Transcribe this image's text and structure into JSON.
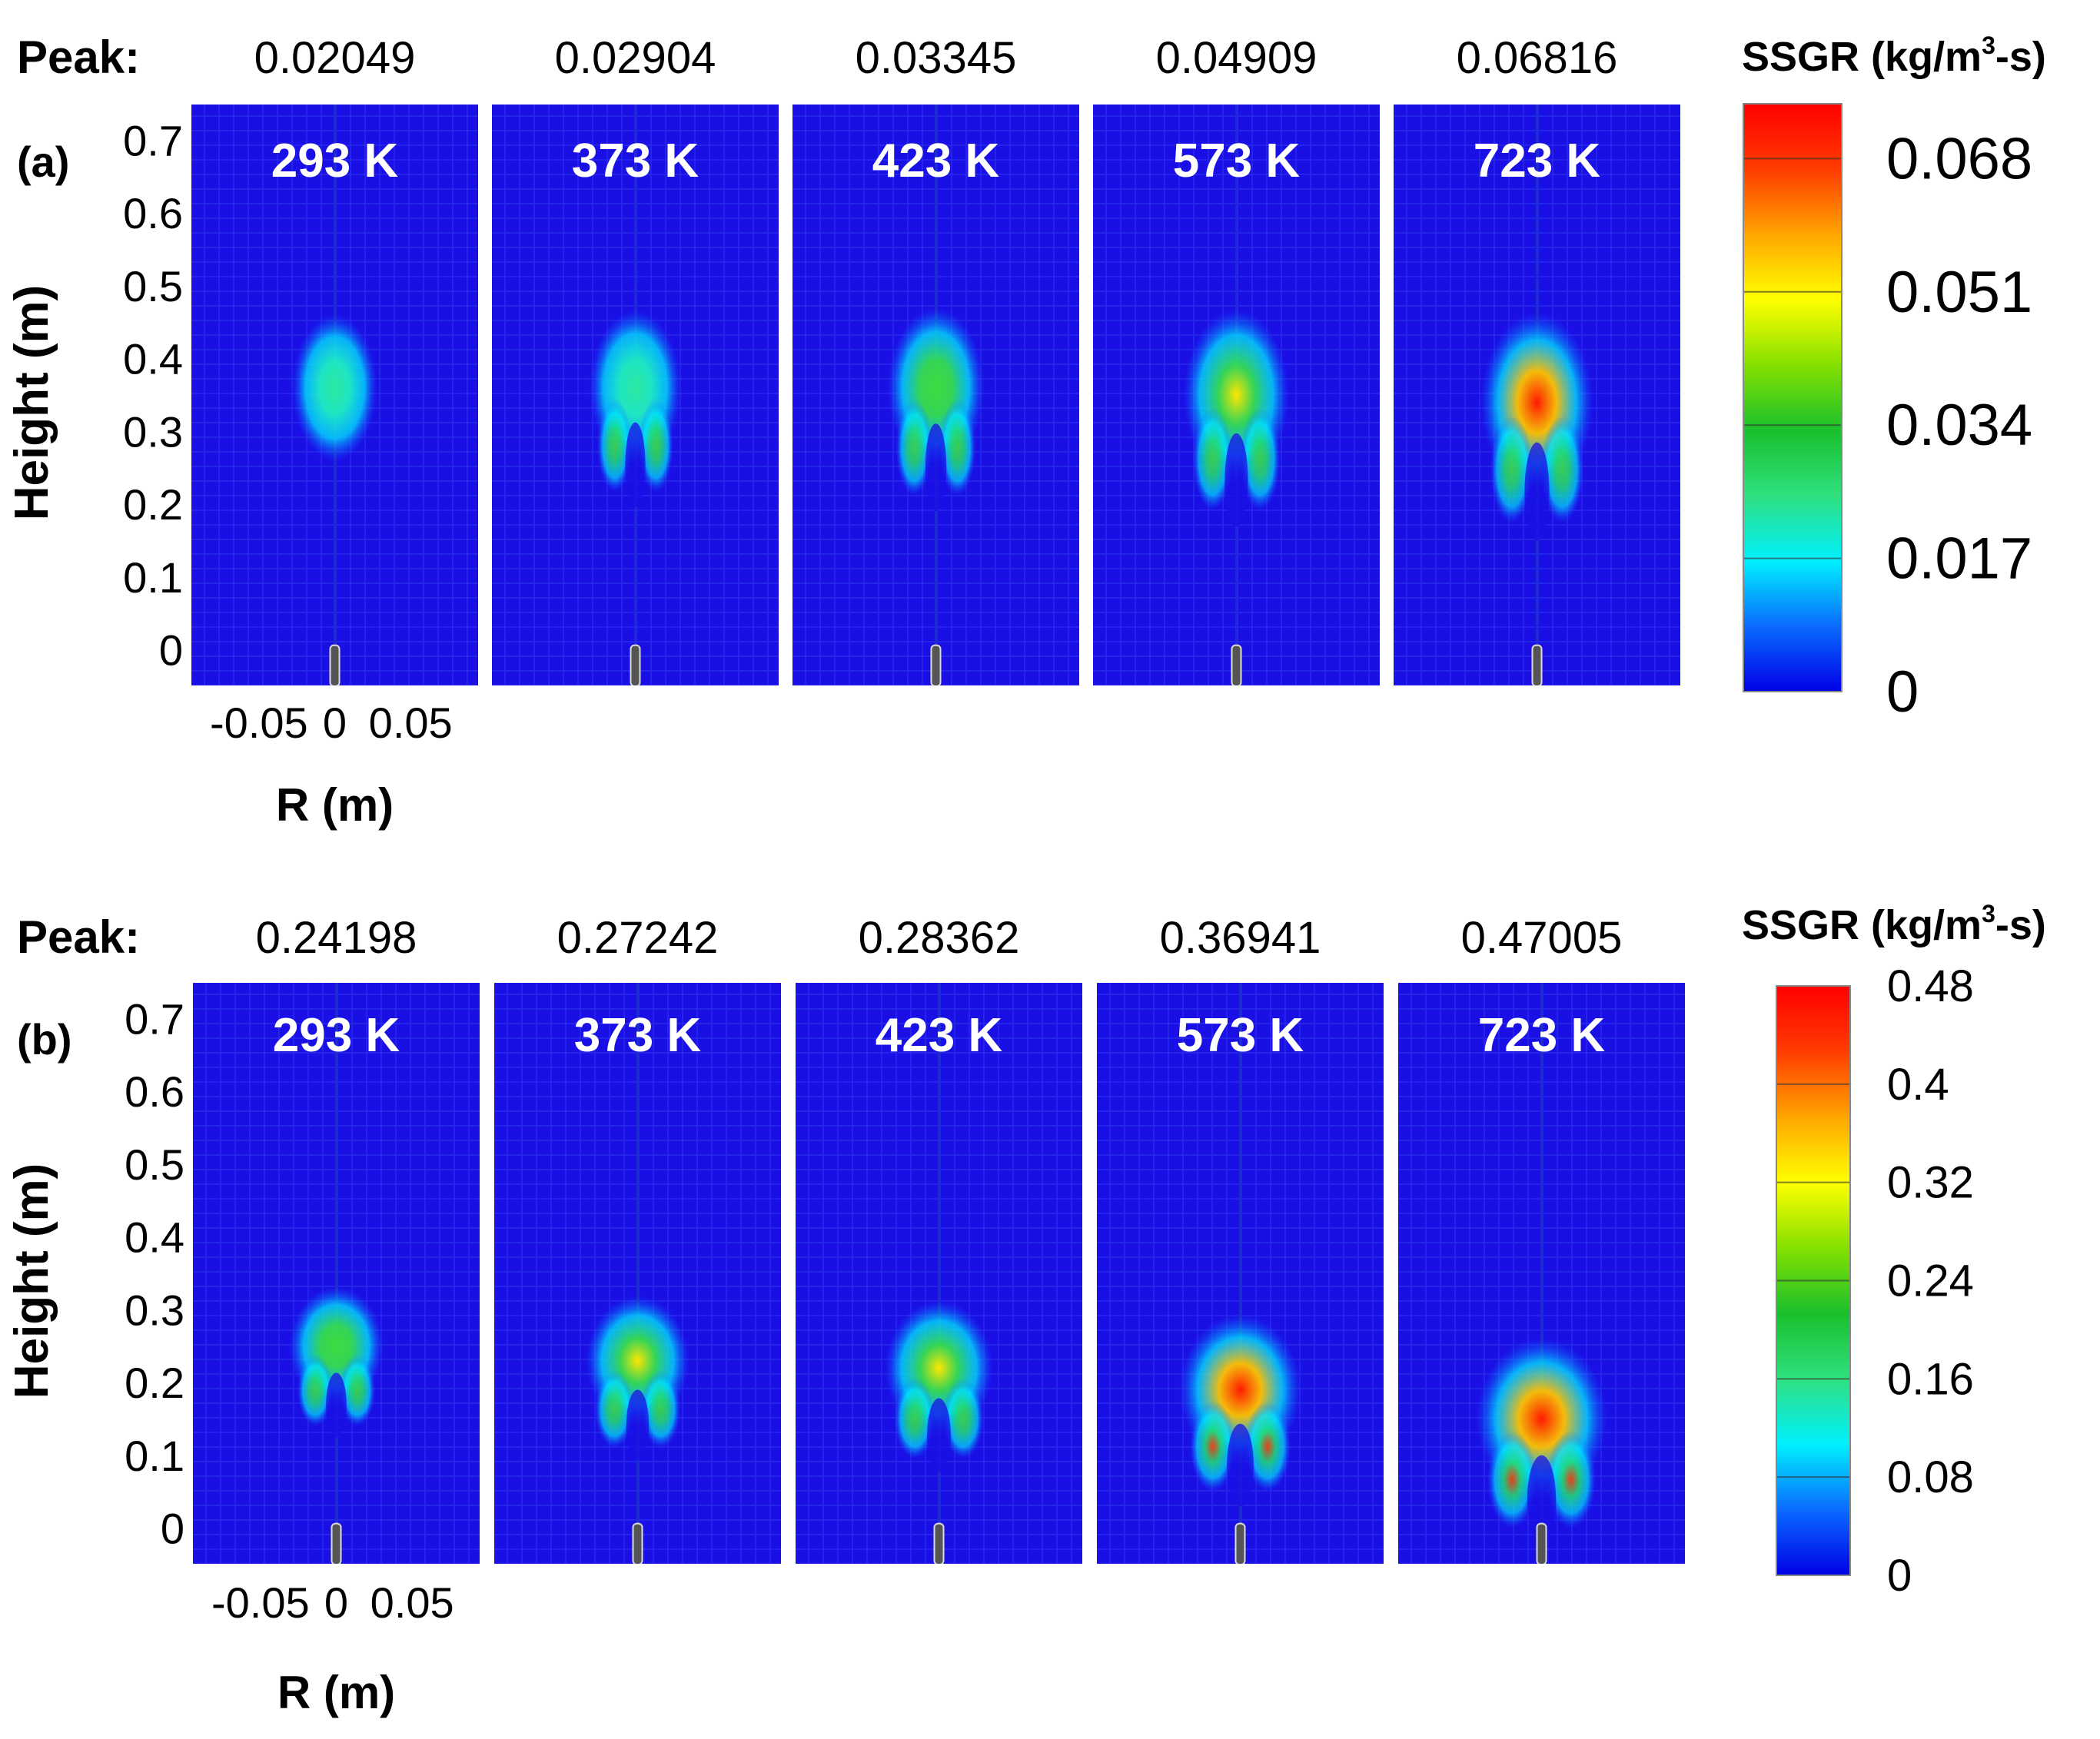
{
  "chart_data": [
    {
      "type": "heatmap",
      "panel_label": "(a)",
      "peak_label": "Peak:",
      "colorbar_title_pre": "SSGR (kg/m",
      "colorbar_title_sup": "3",
      "colorbar_title_post": "-s)",
      "colorbar_ticks": [
        "0",
        "0.017",
        "0.034",
        "0.051",
        "0.068"
      ],
      "colorbar_range": [
        0,
        0.075
      ],
      "ylabel": "Height (m)",
      "xlabel": "R (m)",
      "yticks": [
        "0",
        "0.1",
        "0.2",
        "0.3",
        "0.4",
        "0.5",
        "0.6",
        "0.7"
      ],
      "xticks": [
        "-0.05",
        "0",
        "0.05"
      ],
      "ylim": [
        -0.05,
        0.75
      ],
      "xlim": [
        -0.095,
        0.095
      ],
      "series": [
        {
          "name": "293 K",
          "peak": "0.02049",
          "peak_height": 0.36,
          "spread": 0.0
        },
        {
          "name": "373 K",
          "peak": "0.02904",
          "peak_height": 0.36,
          "spread": 0.15
        },
        {
          "name": "423 K",
          "peak": "0.03345",
          "peak_height": 0.36,
          "spread": 0.25
        },
        {
          "name": "573 K",
          "peak": "0.04909",
          "peak_height": 0.35,
          "spread": 0.45
        },
        {
          "name": "723 K",
          "peak": "0.06816",
          "peak_height": 0.34,
          "spread": 0.6
        }
      ]
    },
    {
      "type": "heatmap",
      "panel_label": "(b)",
      "peak_label": "Peak:",
      "colorbar_title_pre": "SSGR (kg/m",
      "colorbar_title_sup": "3",
      "colorbar_title_post": "-s)",
      "colorbar_ticks": [
        "0",
        "0.08",
        "0.16",
        "0.24",
        "0.32",
        "0.4",
        "0.48"
      ],
      "colorbar_range": [
        0,
        0.48
      ],
      "ylabel": "Height (m)",
      "xlabel": "R (m)",
      "yticks": [
        "0",
        "0.1",
        "0.2",
        "0.3",
        "0.4",
        "0.5",
        "0.6",
        "0.7"
      ],
      "xticks": [
        "-0.05",
        "0",
        "0.05"
      ],
      "ylim": [
        -0.05,
        0.75
      ],
      "xlim": [
        -0.095,
        0.095
      ],
      "series": [
        {
          "name": "293 K",
          "peak": "0.24198",
          "peak_height": 0.25,
          "spread": 0.2
        },
        {
          "name": "373 K",
          "peak": "0.27242",
          "peak_height": 0.23,
          "spread": 0.4
        },
        {
          "name": "423 K",
          "peak": "0.28362",
          "peak_height": 0.22,
          "spread": 0.5
        },
        {
          "name": "573 K",
          "peak": "0.36941",
          "peak_height": 0.19,
          "spread": 0.8
        },
        {
          "name": "723 K",
          "peak": "0.47005",
          "peak_height": 0.15,
          "spread": 1.0
        }
      ]
    }
  ],
  "colors": {
    "background": "#1a10e6",
    "grid": "#2e36f0",
    "stops": [
      "#0000e6",
      "#0a6bff",
      "#00f0ff",
      "#2fe07f",
      "#19c02c",
      "#86e000",
      "#ffff00",
      "#ffa500",
      "#ff3b00",
      "#ff0000"
    ]
  }
}
